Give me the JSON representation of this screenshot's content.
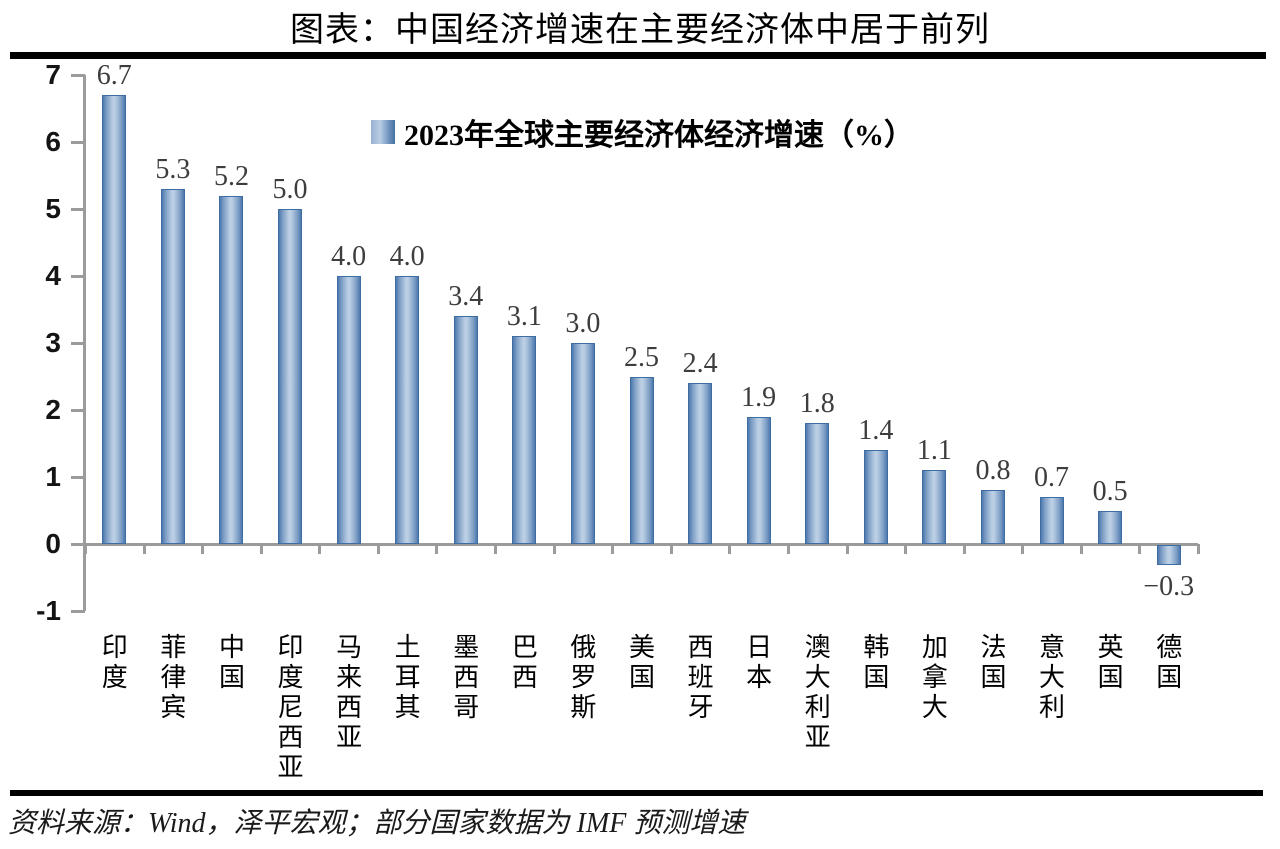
{
  "title": "图表：中国经济增速在主要经济体中居于前列",
  "legend": {
    "label": "2023年全球主要经济体经济增速（%）",
    "marker_icon": "blue-gradient-square"
  },
  "source": "资料来源：Wind，泽平宏观；部分国家数据为 IMF 预测增速",
  "colors": {
    "bar_edge": "#4d78ad",
    "bar_center": "#bdd0e6",
    "bar_border": "#3e6da3",
    "axis": "#9b9b9b",
    "value_label": "#3d3d3d",
    "rule": "#000000"
  },
  "chart_data": {
    "type": "bar",
    "title": "2023年全球主要经济体经济增速（%）",
    "categories": [
      "印度",
      "菲律宾",
      "中国",
      "印度尼西亚",
      "马来西亚",
      "土耳其",
      "墨西哥",
      "巴西",
      "俄罗斯",
      "美国",
      "西班牙",
      "日本",
      "澳大利亚",
      "韩国",
      "加拿大",
      "法国",
      "意大利",
      "英国",
      "德国"
    ],
    "values": [
      6.7,
      5.3,
      5.2,
      5.0,
      4.0,
      4.0,
      3.4,
      3.1,
      3.0,
      2.5,
      2.4,
      1.9,
      1.8,
      1.4,
      1.1,
      0.8,
      0.7,
      0.5,
      -0.3
    ],
    "value_labels": [
      "6.7",
      "5.3",
      "5.2",
      "5.0",
      "4.0",
      "4.0",
      "3.4",
      "3.1",
      "3.0",
      "2.5",
      "2.4",
      "1.9",
      "1.8",
      "1.4",
      "1.1",
      "0.8",
      "0.7",
      "0.5",
      "−0.3"
    ],
    "xlabel": "",
    "ylabel": "",
    "ylim": [
      -1,
      7
    ],
    "yticks": [
      7,
      6,
      5,
      4,
      3,
      2,
      1,
      0,
      -1
    ],
    "grid": false,
    "legend_position": "inside-top-center"
  }
}
